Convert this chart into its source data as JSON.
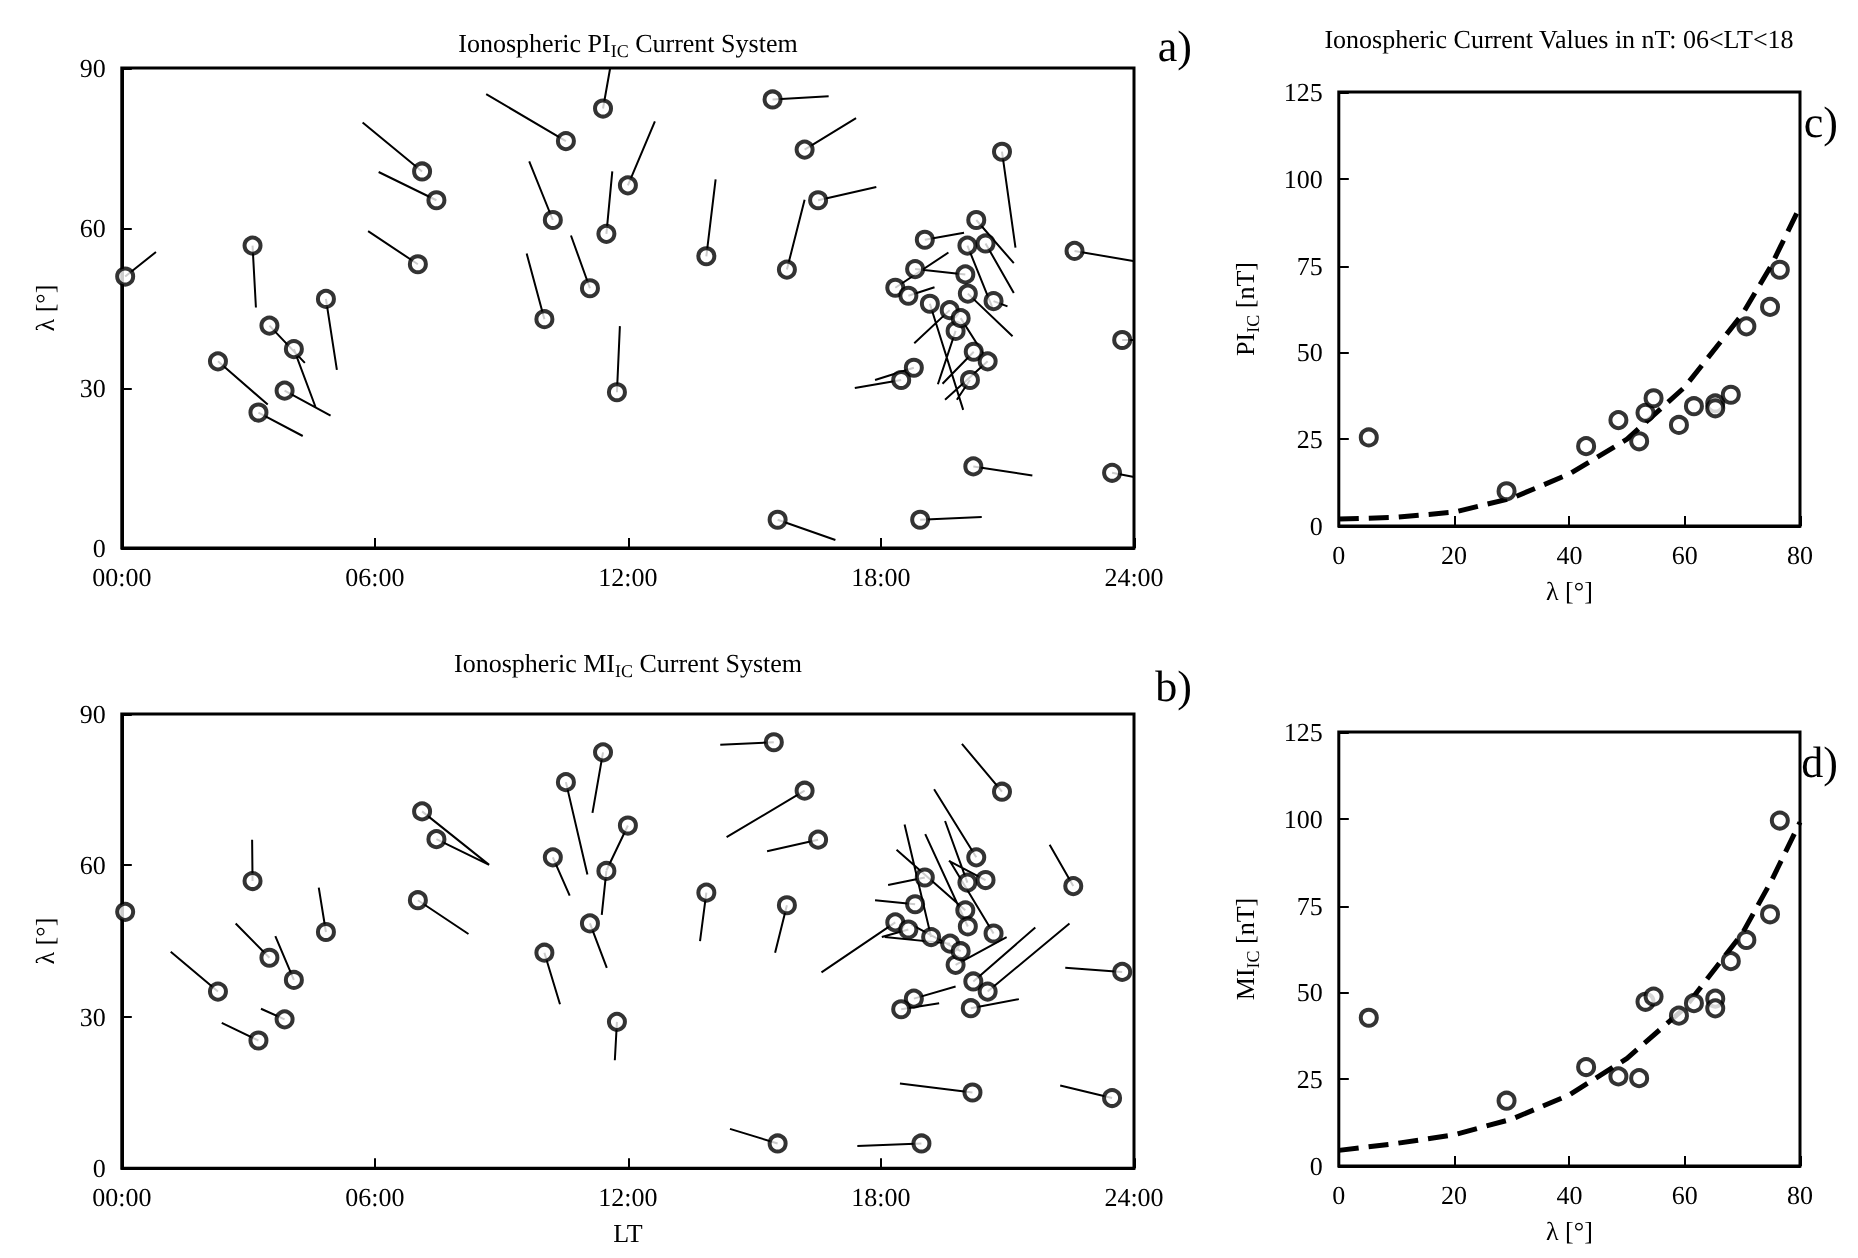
{
  "chart_data": [
    {
      "type": "scatter",
      "title": "Ionospheric PI$_{IC}$ Current System",
      "ylabel": "λ [°]",
      "annotations": [
        "a)"
      ],
      "xlim": [
        0,
        24
      ],
      "xticks": [
        {
          "value": 0,
          "label": "00:00"
        },
        {
          "value": 6,
          "label": "06:00"
        },
        {
          "value": 12,
          "label": "12:00"
        },
        {
          "value": 18,
          "label": "18:00"
        },
        {
          "value": 24,
          "label": "24:00"
        }
      ],
      "ylim": [
        0,
        90
      ],
      "yticks": [
        0,
        30,
        60,
        90
      ],
      "series": [
        {
          "type": "scatter",
          "marker": "circle",
          "color": "#000000",
          "x": [
            0.08,
            3.1,
            2.28,
            3.24,
            3.5,
            4.08,
            3.86,
            4.84,
            7.12,
            7.46,
            7.02,
            10.53,
            11.41,
            12.0,
            10.22,
            11.49,
            11.1,
            10.02,
            11.74,
            15.43,
            16.19,
            16.51,
            13.86,
            15.77,
            20.87,
            20.26,
            19.04,
            20.05,
            20.48,
            18.81,
            20.0,
            18.34,
            18.65,
            20.06,
            20.67,
            19.16,
            19.63,
            19.77,
            19.89,
            20.2,
            20.53,
            18.78,
            18.48,
            20.11,
            22.59,
            23.72,
            20.19,
            23.48,
            15.55,
            18.93
          ],
          "values": [
            50.9,
            56.7,
            35.0,
            25.4,
            41.7,
            37.3,
            29.5,
            46.7,
            70.6,
            65.2,
            53.2,
            76.3,
            82.4,
            68.0,
            61.5,
            58.9,
            48.7,
            42.9,
            29.2,
            84.1,
            74.7,
            65.2,
            54.7,
            52.2,
            74.3,
            61.5,
            57.8,
            56.7,
            57.1,
            52.3,
            51.3,
            48.8,
            47.3,
            47.7,
            46.3,
            45.8,
            44.6,
            40.7,
            43.1,
            36.8,
            35.0,
            33.8,
            31.5,
            31.5,
            55.7,
            39.0,
            15.3,
            14.1,
            5.3,
            5.3
          ]
        },
        {
          "type": "line",
          "color": "#000000",
          "x": [
            0.08,
            0.81,
            null,
            3.1,
            3.18,
            null,
            2.28,
            3.46,
            null,
            3.24,
            4.29,
            null,
            3.5,
            4.34,
            null,
            4.08,
            4.6,
            null,
            3.86,
            4.95,
            null,
            4.84,
            5.1,
            null,
            7.12,
            5.71,
            null,
            7.46,
            6.09,
            null,
            7.02,
            5.84,
            null,
            10.53,
            8.64,
            null,
            11.41,
            11.58,
            null,
            12.0,
            12.64,
            null,
            10.22,
            9.66,
            null,
            11.49,
            11.63,
            null,
            11.1,
            10.65,
            null,
            10.02,
            9.6,
            null,
            11.74,
            11.81,
            null,
            15.43,
            16.76,
            null,
            16.19,
            17.41,
            null,
            16.51,
            17.89,
            null,
            13.86,
            14.08,
            null,
            15.77,
            16.19,
            null,
            20.87,
            21.19,
            null,
            20.26,
            21.15,
            null,
            19.04,
            19.97,
            null,
            20.05,
            20.64,
            null,
            20.48,
            21.15,
            null,
            18.81,
            20.0,
            null,
            18.34,
            19.6,
            null,
            18.65,
            19.27,
            null,
            20.06,
            21.12,
            null,
            20.67,
            21.0,
            null,
            19.16,
            19.95,
            null,
            19.63,
            18.79,
            null,
            19.77,
            19.35,
            null,
            19.89,
            20.42,
            null,
            20.2,
            19.46,
            null,
            20.53,
            19.52,
            null,
            18.78,
            17.86,
            null,
            18.48,
            17.38,
            null,
            20.11,
            19.8,
            null,
            22.59,
            23.98,
            null,
            23.72,
            24.0,
            null,
            20.19,
            21.59,
            null,
            23.48,
            24.0,
            null,
            15.55,
            16.92,
            null,
            18.93,
            20.39
          ],
          "values": [
            50.9,
            55.5,
            null,
            56.7,
            45.1,
            null,
            35.0,
            26.9,
            null,
            25.4,
            21.0,
            null,
            41.7,
            34.7,
            null,
            37.3,
            26.3,
            null,
            29.5,
            24.8,
            null,
            46.7,
            33.4,
            null,
            70.6,
            79.8,
            null,
            65.2,
            70.5,
            null,
            53.2,
            59.4,
            null,
            76.3,
            85.1,
            null,
            82.4,
            90,
            null,
            68.0,
            80.0,
            null,
            61.5,
            72.5,
            null,
            58.9,
            70.6,
            null,
            48.7,
            58.6,
            null,
            42.9,
            55.2,
            null,
            29.2,
            41.6,
            null,
            84.1,
            84.7,
            null,
            74.7,
            80.6,
            null,
            65.2,
            67.7,
            null,
            54.7,
            69.1,
            null,
            52.2,
            65.3,
            null,
            74.3,
            56.3,
            null,
            61.5,
            53.4,
            null,
            57.8,
            59.1,
            null,
            56.7,
            45.1,
            null,
            57.1,
            47.8,
            null,
            52.3,
            51.3,
            null,
            48.8,
            55.4,
            null,
            47.3,
            48.9,
            null,
            47.7,
            39.7,
            null,
            46.3,
            45.3,
            null,
            45.8,
            25.9,
            null,
            44.6,
            38.4,
            null,
            40.7,
            30.7,
            null,
            43.1,
            36.5,
            null,
            36.8,
            30.8,
            null,
            35.0,
            27.8,
            null,
            33.8,
            31.5,
            null,
            31.5,
            30.0,
            null,
            31.5,
            27.8,
            null,
            55.7,
            53.8,
            null,
            39.0,
            39.0,
            null,
            15.3,
            13.6,
            null,
            14.1,
            13.3,
            null,
            5.3,
            1.5,
            null,
            5.3,
            5.8
          ]
        }
      ]
    },
    {
      "type": "scatter",
      "title": "Ionospheric MI$_{IC}$ Current System",
      "xlabel": "LT",
      "ylabel": "λ [°]",
      "annotations": [
        "b)"
      ],
      "xlim": [
        0,
        24
      ],
      "xticks": [
        {
          "value": 0,
          "label": "00:00"
        },
        {
          "value": 6,
          "label": "06:00"
        },
        {
          "value": 12,
          "label": "12:00"
        },
        {
          "value": 18,
          "label": "18:00"
        },
        {
          "value": 24,
          "label": "24:00"
        }
      ],
      "ylim": [
        0,
        90
      ],
      "yticks": [
        0,
        30,
        60,
        90
      ],
      "series": [
        {
          "type": "scatter",
          "marker": "circle",
          "color": "#000000",
          "x": [
            0.08,
            3.1,
            2.28,
            3.24,
            3.5,
            4.08,
            3.86,
            4.84,
            7.12,
            7.46,
            7.02,
            10.53,
            11.41,
            12.0,
            10.22,
            11.49,
            11.1,
            10.02,
            11.74,
            15.46,
            16.19,
            16.51,
            13.86,
            15.77,
            20.87,
            20.26,
            19.04,
            20.05,
            20.48,
            18.81,
            20.0,
            18.34,
            18.65,
            20.06,
            20.67,
            19.19,
            19.64,
            19.77,
            19.89,
            20.19,
            20.53,
            18.78,
            18.48,
            20.13,
            22.56,
            23.72,
            20.17,
            23.48,
            15.55,
            18.96
          ],
          "values": [
            50.8,
            56.9,
            35.0,
            25.3,
            41.7,
            37.3,
            29.5,
            46.8,
            70.7,
            65.2,
            53.1,
            76.5,
            82.4,
            67.9,
            61.6,
            58.9,
            48.5,
            42.7,
            29.0,
            84.4,
            74.8,
            65.1,
            54.6,
            52.1,
            74.6,
            61.6,
            57.6,
            56.6,
            57.1,
            52.3,
            51.1,
            48.7,
            47.3,
            47.9,
            46.5,
            45.8,
            44.5,
            40.3,
            43.0,
            37.0,
            35.0,
            33.6,
            31.5,
            31.7,
            55.9,
            38.9,
            15.0,
            13.9,
            4.9,
            4.9
          ]
        },
        {
          "type": "line",
          "color": "#000000",
          "x": [
            3.1,
            3.09,
            null,
            2.28,
            1.16,
            null,
            3.24,
            2.37,
            null,
            3.5,
            2.7,
            null,
            4.08,
            3.64,
            null,
            3.86,
            3.3,
            null,
            4.84,
            4.67,
            null,
            7.12,
            8.71,
            null,
            7.46,
            8.71,
            null,
            7.02,
            8.22,
            null,
            10.53,
            11.04,
            null,
            11.41,
            11.16,
            null,
            12.0,
            11.49,
            null,
            10.22,
            10.62,
            null,
            11.49,
            11.38,
            null,
            11.1,
            11.5,
            null,
            10.02,
            10.39,
            null,
            11.74,
            11.69,
            null,
            15.46,
            14.19,
            null,
            16.19,
            14.34,
            null,
            16.51,
            15.3,
            null,
            13.86,
            13.71,
            null,
            15.77,
            15.49,
            null,
            20.87,
            19.92,
            null,
            20.26,
            19.26,
            null,
            19.04,
            18.17,
            null,
            20.05,
            19.52,
            null,
            20.48,
            19.61,
            null,
            18.81,
            17.86,
            null,
            20.0,
            18.37,
            null,
            18.34,
            16.59,
            null,
            18.65,
            18.02,
            null,
            20.06,
            19.05,
            null,
            20.67,
            19.63,
            null,
            19.19,
            18.56,
            null,
            19.64,
            18.09,
            null,
            19.77,
            20.98,
            null,
            19.89,
            18.71,
            null,
            20.19,
            21.66,
            null,
            20.53,
            22.47,
            null,
            18.78,
            19.77,
            null,
            18.48,
            19.38,
            null,
            20.13,
            21.27,
            null,
            22.56,
            22.0,
            null,
            23.72,
            22.37,
            null,
            20.17,
            18.45,
            null,
            23.48,
            22.25,
            null,
            15.55,
            14.42,
            null,
            18.96,
            17.44
          ],
          "values": [
            56.9,
            65.1,
            null,
            35.0,
            42.9,
            null,
            25.3,
            28.8,
            null,
            41.7,
            48.5,
            null,
            37.3,
            46.0,
            null,
            29.5,
            31.6,
            null,
            46.8,
            55.6,
            null,
            70.7,
            60.1,
            null,
            65.2,
            60.1,
            null,
            53.1,
            46.4,
            null,
            76.5,
            58.2,
            null,
            82.4,
            70.4,
            null,
            67.9,
            59.0,
            null,
            61.6,
            54.0,
            null,
            58.9,
            50.2,
            null,
            48.5,
            39.7,
            null,
            42.7,
            32.5,
            null,
            29.0,
            21.4,
            null,
            84.4,
            83.9,
            null,
            74.8,
            65.6,
            null,
            65.1,
            62.8,
            null,
            54.6,
            45.0,
            null,
            52.1,
            42.7,
            null,
            74.6,
            84.1,
            null,
            61.6,
            75.1,
            null,
            57.6,
            56.1,
            null,
            56.6,
            68.8,
            null,
            57.1,
            60.9,
            null,
            52.3,
            53.1,
            null,
            51.1,
            63.1,
            null,
            48.7,
            38.8,
            null,
            47.3,
            45.8,
            null,
            47.9,
            66.2,
            null,
            46.5,
            60.9,
            null,
            45.8,
            68.1,
            null,
            44.5,
            45.8,
            null,
            40.3,
            45.8,
            null,
            43.0,
            48.3,
            null,
            37.0,
            47.7,
            null,
            35.0,
            48.5,
            null,
            33.6,
            36.0,
            null,
            31.5,
            32.7,
            null,
            31.7,
            33.5,
            null,
            55.9,
            64.1,
            null,
            38.9,
            39.7,
            null,
            15.0,
            16.8,
            null,
            13.9,
            16.4,
            null,
            4.9,
            7.8,
            null,
            4.9,
            4.4
          ]
        }
      ]
    },
    {
      "type": "scatter",
      "title": "Ionospheric Current Values in nT: 06<LT<18",
      "xlabel": "λ [°]",
      "ylabel": "PI$_{IC}$ [nT]",
      "annotations": [
        "c)"
      ],
      "xlim": [
        0,
        80
      ],
      "xticks": [
        0,
        20,
        40,
        60,
        80
      ],
      "ylim": [
        0,
        125
      ],
      "yticks": [
        0,
        25,
        50,
        75,
        100,
        125
      ],
      "series": [
        {
          "type": "scatter",
          "marker": "circle",
          "color": "#000000",
          "x": [
            5.2,
            29.1,
            42.9,
            48.5,
            52.1,
            53.2,
            54.6,
            59.0,
            61.6,
            65.3,
            65.3,
            68.0,
            70.7,
            74.8,
            76.5
          ],
          "values": [
            25.5,
            10.0,
            23.0,
            30.5,
            24.4,
            32.6,
            36.8,
            29.1,
            34.5,
            35.3,
            33.9,
            37.8,
            57.5,
            63.1,
            73.8
          ]
        },
        {
          "type": "line",
          "line_style": "dashed",
          "color": "#000000",
          "x": [
            0,
            10,
            20,
            30,
            40,
            50,
            60,
            70,
            75,
            80
          ],
          "values": [
            2,
            2.5,
            4,
            8,
            15,
            25,
            40,
            61,
            75,
            92
          ]
        }
      ]
    },
    {
      "type": "scatter",
      "xlabel": "λ [°]",
      "ylabel": "MI$_{IC}$ [nT]",
      "annotations": [
        "d)"
      ],
      "xlim": [
        0,
        80
      ],
      "xticks": [
        0,
        20,
        40,
        60,
        80
      ],
      "ylim": [
        0,
        125
      ],
      "yticks": [
        0,
        25,
        50,
        75,
        100,
        125
      ],
      "series": [
        {
          "type": "scatter",
          "marker": "circle",
          "color": "#000000",
          "x": [
            5.2,
            29.1,
            42.9,
            48.5,
            52.1,
            53.2,
            54.6,
            59.0,
            61.6,
            65.3,
            65.3,
            68.0,
            70.7,
            74.8,
            76.5
          ],
          "values": [
            42.7,
            18.8,
            28.5,
            25.8,
            25.3,
            47.3,
            48.8,
            43.3,
            46.9,
            48.2,
            45.4,
            59.0,
            65.1,
            72.5,
            99.5
          ]
        },
        {
          "type": "line",
          "line_style": "dashed",
          "color": "#000000",
          "x": [
            0,
            10,
            20,
            30,
            40,
            50,
            60,
            70,
            75,
            80
          ],
          "values": [
            4.5,
            6.5,
            9,
            13.5,
            20.5,
            31,
            45.5,
            67,
            82,
            99
          ]
        }
      ]
    }
  ]
}
